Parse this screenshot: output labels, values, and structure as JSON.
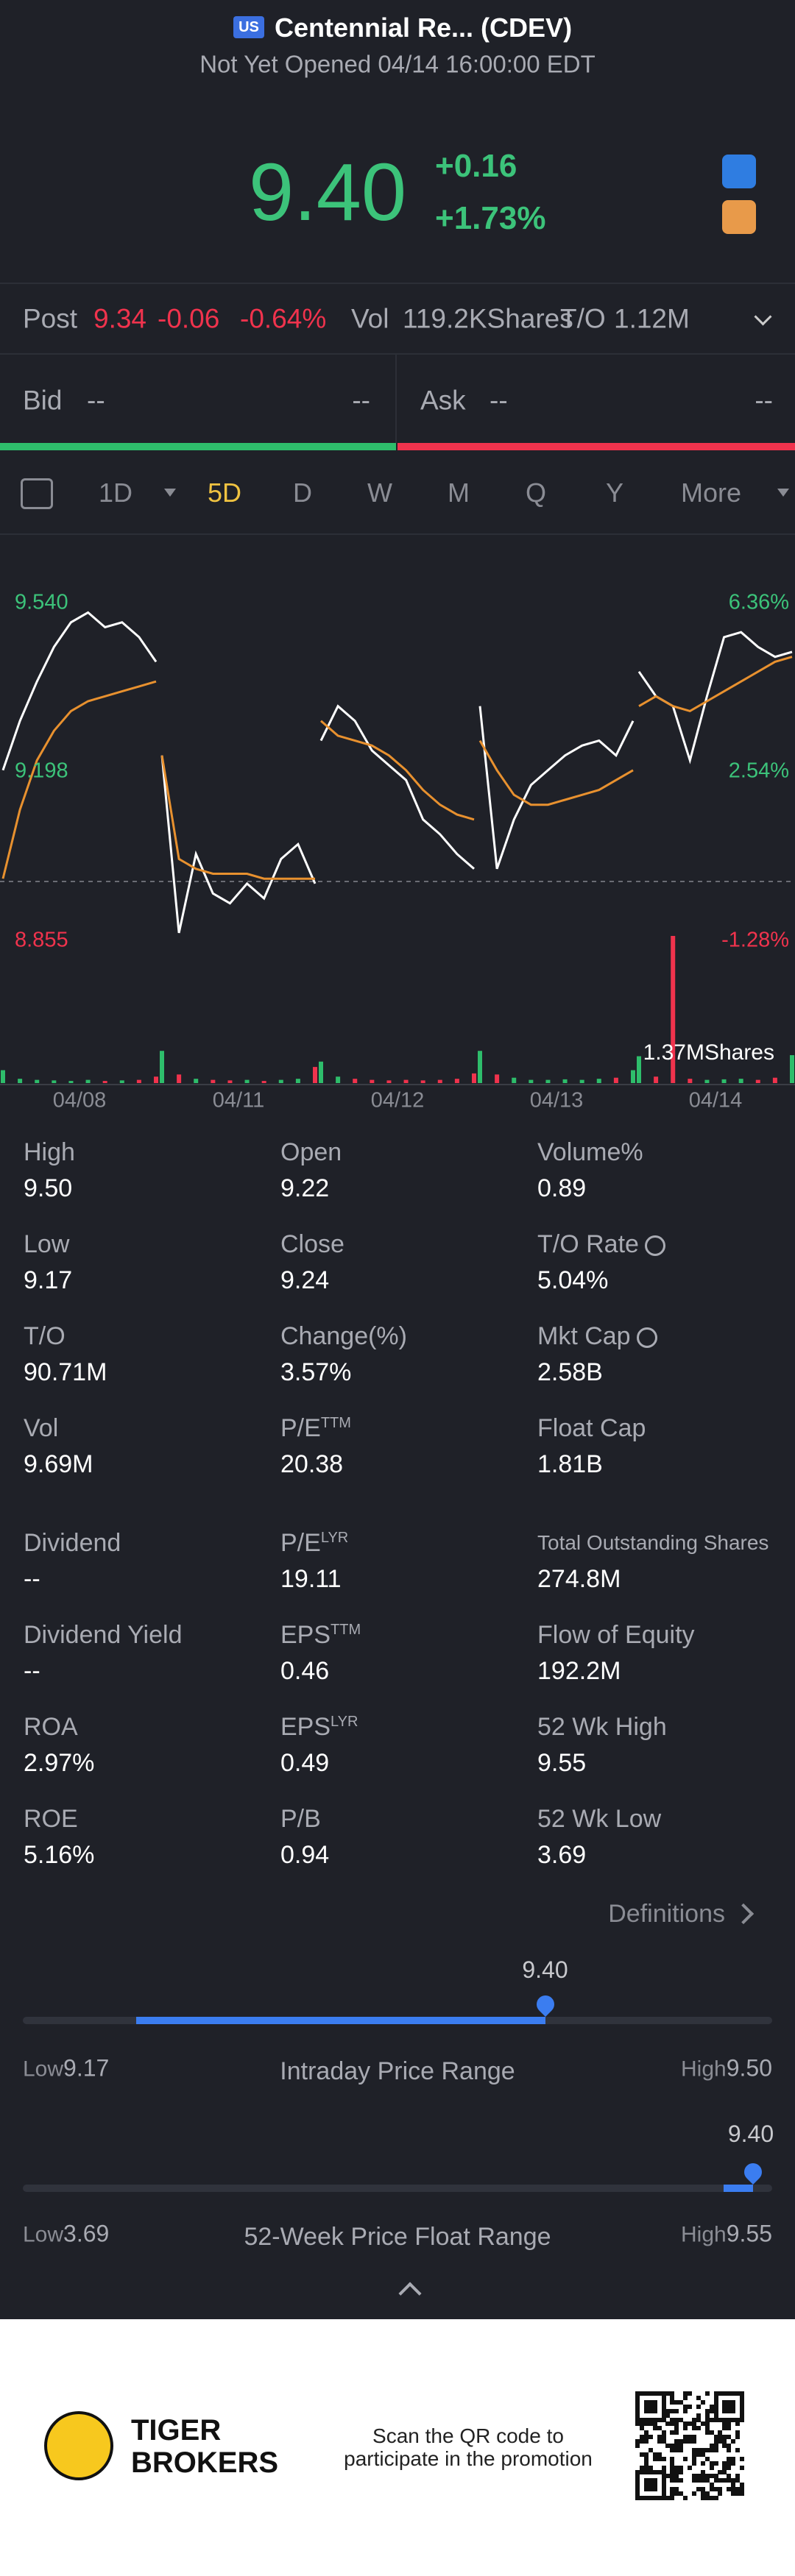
{
  "header": {
    "badge": "US",
    "name": "Centennial Re... (CDEV)",
    "status": "Not Yet Opened 04/14 16:00:00 EDT",
    "price": "9.40",
    "change": "+0.16",
    "change_pct": "+1.73%"
  },
  "post": {
    "label": "Post",
    "price": "9.34",
    "change": "-0.06",
    "pct": "-0.64%",
    "vol_label": "Vol",
    "vol": "119.2KShares",
    "to_label": "T/O",
    "to": "1.12M"
  },
  "bidask": {
    "bid_label": "Bid",
    "bid": "--",
    "bid_size": "--",
    "ask_label": "Ask",
    "ask": "--",
    "ask_size": "--"
  },
  "tabs": [
    "1D",
    "5D",
    "D",
    "W",
    "M",
    "Q",
    "Y",
    "More"
  ],
  "chart_data": {
    "type": "line",
    "days": [
      "04/08",
      "04/11",
      "04/12",
      "04/13",
      "04/14"
    ],
    "ylim": [
      8.855,
      9.54
    ],
    "yticks": [
      {
        "value": 9.54,
        "label": "9.540"
      },
      {
        "value": 9.198,
        "label": "9.198"
      },
      {
        "value": 8.855,
        "label": "8.855"
      }
    ],
    "pct_labels": [
      "6.36%",
      "2.54%",
      "-1.28%"
    ],
    "series": [
      {
        "color": "#ffffff",
        "values": [
          9.2,
          9.3,
          9.38,
          9.45,
          9.5,
          9.52,
          9.49,
          9.5,
          9.47,
          9.42,
          null,
          9.23,
          8.87,
          9.03,
          8.95,
          8.93,
          8.97,
          8.94,
          9.02,
          9.05,
          8.97,
          null,
          9.26,
          9.33,
          9.3,
          9.24,
          9.21,
          9.18,
          9.1,
          9.07,
          9.03,
          9.0,
          null,
          9.33,
          9.0,
          9.1,
          9.17,
          9.2,
          9.23,
          9.25,
          9.26,
          9.23,
          9.3,
          null,
          9.4,
          9.35,
          9.33,
          9.22,
          9.35,
          9.47,
          9.48,
          9.45,
          9.43,
          9.44
        ]
      },
      {
        "color": "#e8912f",
        "values": [
          8.98,
          9.12,
          9.22,
          9.28,
          9.32,
          9.34,
          9.35,
          9.36,
          9.37,
          9.38,
          null,
          9.23,
          9.02,
          9.0,
          8.99,
          8.99,
          8.99,
          8.98,
          8.98,
          8.98,
          8.98,
          null,
          9.3,
          9.27,
          9.26,
          9.25,
          9.23,
          9.2,
          9.16,
          9.13,
          9.11,
          9.1,
          null,
          9.26,
          9.2,
          9.15,
          9.13,
          9.13,
          9.14,
          9.15,
          9.16,
          9.18,
          9.2,
          null,
          9.33,
          9.35,
          9.33,
          9.32,
          9.34,
          9.36,
          9.38,
          9.4,
          9.42,
          9.43
        ]
      }
    ],
    "volume": {
      "label": "1.37MShares",
      "ylim": [
        0,
        1370
      ],
      "values": [
        120,
        40,
        30,
        25,
        20,
        30,
        20,
        25,
        30,
        60,
        300,
        80,
        40,
        30,
        25,
        30,
        20,
        30,
        40,
        150,
        200,
        60,
        40,
        30,
        25,
        30,
        25,
        30,
        40,
        90,
        300,
        80,
        50,
        30,
        30,
        35,
        30,
        40,
        50,
        120,
        250,
        60,
        1370,
        40,
        30,
        35,
        40,
        30,
        50,
        260
      ]
    },
    "up_color": "#2ebd6b",
    "down_color": "#f0334d"
  },
  "stats": [
    {
      "label": "High",
      "value": "9.50"
    },
    {
      "label": "Open",
      "value": "9.22"
    },
    {
      "label": "Volume%",
      "value": "0.89"
    },
    {
      "label": "Low",
      "value": "9.17"
    },
    {
      "label": "Close",
      "value": "9.24"
    },
    {
      "label": "T/O Rate",
      "value": "5.04%",
      "info": true
    },
    {
      "label": "T/O",
      "value": "90.71M"
    },
    {
      "label": "Change(%)",
      "value": "3.57%"
    },
    {
      "label": "Mkt Cap",
      "value": "2.58B",
      "info": true
    },
    {
      "label": "Vol",
      "value": "9.69M"
    },
    {
      "label": "P/E",
      "sup": "TTM",
      "value": "20.38"
    },
    {
      "label": "Float Cap",
      "value": "1.81B"
    },
    {
      "label": "Dividend",
      "value": "--"
    },
    {
      "label": "P/E",
      "sup": "LYR",
      "value": "19.11"
    },
    {
      "label": "Total Outstanding Shares",
      "value": "274.8M",
      "small": true
    },
    {
      "label": "Dividend Yield",
      "value": "--"
    },
    {
      "label": "EPS",
      "sup": "TTM",
      "value": "0.46"
    },
    {
      "label": "Flow of Equity",
      "value": "192.2M"
    },
    {
      "label": "ROA",
      "value": "2.97%"
    },
    {
      "label": "EPS",
      "sup": "LYR",
      "value": "0.49"
    },
    {
      "label": "52 Wk High",
      "value": "9.55"
    },
    {
      "label": "ROE",
      "value": "5.16%"
    },
    {
      "label": "P/B",
      "value": "0.94"
    },
    {
      "label": "52 Wk Low",
      "value": "3.69"
    }
  ],
  "definitions": "Definitions",
  "ranges": [
    {
      "marker": "9.40",
      "low_label": "Low",
      "low": "9.17",
      "title": "Intraday Price Range",
      "high_label": "High",
      "high": "9.50"
    },
    {
      "marker": "9.40",
      "low_label": "Low",
      "low": "3.69",
      "title": "52-Week Price Float Range",
      "high_label": "High",
      "high": "9.55"
    }
  ],
  "footer": {
    "brand_1": "TIGER",
    "brand_2": "BROKERS",
    "promo_1": "Scan the QR code to",
    "promo_2": "participate in the promotion"
  }
}
